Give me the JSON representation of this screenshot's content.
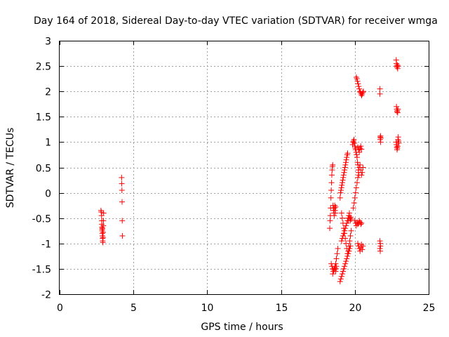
{
  "chart_data": {
    "type": "scatter",
    "title": "Day 164 of 2018, Sidereal Day-to-day VTEC variation (SDTVAR) for receiver wmga",
    "xlabel": "GPS time / hours",
    "ylabel": "SDTVAR / TECUs",
    "xlim": [
      0,
      25
    ],
    "ylim": [
      -2,
      3
    ],
    "xticks": [
      0,
      5,
      10,
      15,
      20,
      25
    ],
    "xtick_labels": [
      "0",
      "5",
      "10",
      "15",
      "20",
      "25"
    ],
    "yticks": [
      -2,
      -1.5,
      -1,
      -0.5,
      0,
      0.5,
      1,
      1.5,
      2,
      2.5,
      3
    ],
    "ytick_labels": [
      "-2",
      "-1.5",
      "-1",
      "-0.5",
      "0",
      "0.5",
      "1",
      "1.5",
      "2",
      "2.5",
      "3"
    ],
    "grid": true,
    "marker": "+",
    "color": "#ff0000",
    "series": [
      {
        "name": "SDTVAR",
        "x": [
          2.8,
          2.82,
          2.84,
          2.85,
          2.86,
          2.87,
          2.88,
          2.88,
          2.89,
          2.9,
          2.9,
          2.91,
          2.92,
          2.93,
          2.94,
          2.95,
          2.96,
          2.97,
          2.98,
          4.2,
          4.21,
          4.22,
          4.23,
          4.24,
          4.25,
          18.3,
          18.32,
          18.34,
          18.36,
          18.38,
          18.4,
          18.42,
          18.44,
          18.46,
          18.48,
          18.5,
          18.52,
          18.54,
          18.56,
          18.58,
          18.6,
          18.62,
          18.64,
          18.66,
          18.68,
          18.7,
          18.4,
          18.45,
          18.5,
          18.55,
          18.6,
          18.65,
          18.7,
          18.72,
          18.74,
          18.5,
          18.55,
          18.6,
          18.65,
          18.7,
          18.75,
          18.8,
          18.85,
          19.0,
          19.03,
          19.06,
          19.09,
          19.12,
          19.15,
          19.18,
          19.21,
          19.24,
          19.27,
          19.3,
          19.33,
          19.36,
          19.39,
          19.42,
          19.45,
          19.48,
          19.51,
          19.54,
          19.57,
          19.6,
          19.63,
          19.66,
          19.69,
          19.72,
          19.75,
          19.1,
          19.15,
          19.2,
          19.25,
          19.3,
          19.35,
          19.4,
          19.45,
          19.5,
          19.55,
          19.6,
          19.65,
          19.7,
          19.75,
          19.0,
          19.05,
          19.1,
          19.15,
          19.2,
          19.25,
          19.3,
          19.35,
          19.4,
          19.45,
          19.5,
          19.55,
          19.6,
          19.65,
          19.7,
          19.1,
          19.15,
          19.2,
          19.25,
          19.3,
          19.35,
          19.4,
          19.45,
          19.5,
          19.55,
          19.6,
          19.85,
          19.88,
          19.91,
          19.94,
          19.97,
          20.0,
          20.03,
          20.06,
          20.09,
          20.12,
          20.15,
          20.18,
          20.21,
          20.24,
          20.27,
          19.9,
          19.95,
          20.0,
          20.05,
          20.1,
          20.15,
          20.2,
          20.25,
          20.3,
          20.35,
          20.4,
          20.45,
          20.5,
          20.55,
          20.0,
          20.05,
          20.1,
          20.15,
          20.2,
          20.25,
          20.3,
          20.35,
          20.4,
          20.45,
          20.1,
          20.14,
          20.18,
          20.22,
          20.26,
          20.3,
          20.34,
          20.38,
          20.42,
          20.46,
          20.5,
          20.54,
          20.58,
          20.2,
          20.25,
          20.3,
          20.35,
          20.4,
          20.45,
          20.5,
          20.55,
          20.2,
          20.25,
          20.3,
          20.35,
          20.4,
          20.45,
          21.7,
          21.7,
          21.72,
          21.72,
          21.74,
          21.74,
          21.76,
          21.7,
          21.72,
          21.74,
          21.7,
          21.72,
          22.8,
          22.82,
          22.84,
          22.86,
          22.88,
          22.9,
          22.92,
          22.82,
          22.84,
          22.86,
          22.88,
          22.9,
          22.92,
          22.8,
          22.82,
          22.84,
          22.86,
          22.88,
          22.9,
          22.92,
          22.94,
          22.96,
          22.98
        ],
        "y": [
          -0.35,
          -0.38,
          -0.45,
          -0.55,
          -0.62,
          -0.68,
          -0.72,
          -0.75,
          -0.8,
          -0.85,
          -0.7,
          -0.9,
          -0.95,
          -0.98,
          -0.88,
          -0.78,
          -0.65,
          -0.55,
          -0.4,
          0.3,
          0.18,
          0.05,
          -0.18,
          -0.55,
          -0.85,
          -0.7,
          -0.55,
          -0.45,
          -0.3,
          -0.1,
          0.05,
          0.2,
          0.35,
          0.45,
          0.52,
          0.55,
          -0.25,
          -0.3,
          -0.35,
          -0.4,
          -0.45,
          -0.3,
          -0.25,
          -0.35,
          -0.4,
          -0.28,
          -1.4,
          -1.45,
          -1.5,
          -1.55,
          -1.52,
          -1.48,
          -1.55,
          -1.5,
          -1.45,
          -1.6,
          -1.55,
          -1.5,
          -1.45,
          -1.4,
          -1.3,
          -1.2,
          -1.1,
          -0.1,
          0.0,
          0.05,
          0.1,
          0.15,
          0.2,
          0.25,
          0.3,
          0.35,
          0.4,
          0.45,
          0.5,
          0.55,
          0.6,
          0.65,
          0.7,
          0.75,
          0.78,
          -0.5,
          -0.55,
          -0.45,
          -0.4,
          -0.5,
          -0.55,
          -0.48,
          -0.52,
          -0.4,
          -0.5,
          -0.6,
          -0.7,
          -0.8,
          -0.9,
          -1.0,
          -1.1,
          -1.2,
          -1.15,
          -1.05,
          -0.95,
          -0.85,
          -0.75,
          -1.75,
          -1.7,
          -1.65,
          -1.6,
          -1.55,
          -1.5,
          -1.45,
          -1.4,
          -1.35,
          -1.3,
          -1.25,
          -1.2,
          -1.15,
          -1.1,
          -1.05,
          -0.95,
          -0.9,
          -0.85,
          -0.8,
          -0.75,
          -0.7,
          -0.65,
          -0.6,
          -0.55,
          -0.5,
          -0.45,
          0.95,
          1.0,
          1.02,
          1.05,
          0.98,
          0.92,
          0.88,
          0.85,
          0.8,
          0.75,
          0.7,
          0.6,
          0.55,
          0.45,
          0.35,
          -0.3,
          -0.2,
          -0.1,
          0.0,
          0.1,
          0.2,
          0.3,
          0.4,
          0.5,
          0.55,
          0.45,
          0.35,
          0.4,
          0.5,
          -0.55,
          -0.6,
          -0.65,
          -0.58,
          -0.62,
          -0.6,
          -0.55,
          -0.58,
          -0.62,
          -0.6,
          2.28,
          2.25,
          2.2,
          2.15,
          2.1,
          2.05,
          2.0,
          1.98,
          1.95,
          1.92,
          1.95,
          1.98,
          2.0,
          -1.0,
          -1.05,
          -1.1,
          -1.15,
          -1.08,
          -1.02,
          -1.12,
          -1.05,
          0.9,
          0.85,
          0.8,
          0.88,
          0.92,
          0.86,
          2.05,
          1.95,
          1.1,
          1.05,
          1.12,
          1.0,
          1.08,
          -0.95,
          -1.0,
          -1.05,
          -1.1,
          -1.15,
          2.62,
          2.55,
          2.5,
          2.48,
          2.52,
          2.45,
          2.5,
          1.7,
          1.65,
          1.6,
          1.62,
          1.58,
          1.65,
          1.0,
          0.95,
          0.9,
          0.85,
          0.88,
          0.92,
          1.05,
          1.1,
          1.02,
          0.98
        ]
      }
    ]
  }
}
